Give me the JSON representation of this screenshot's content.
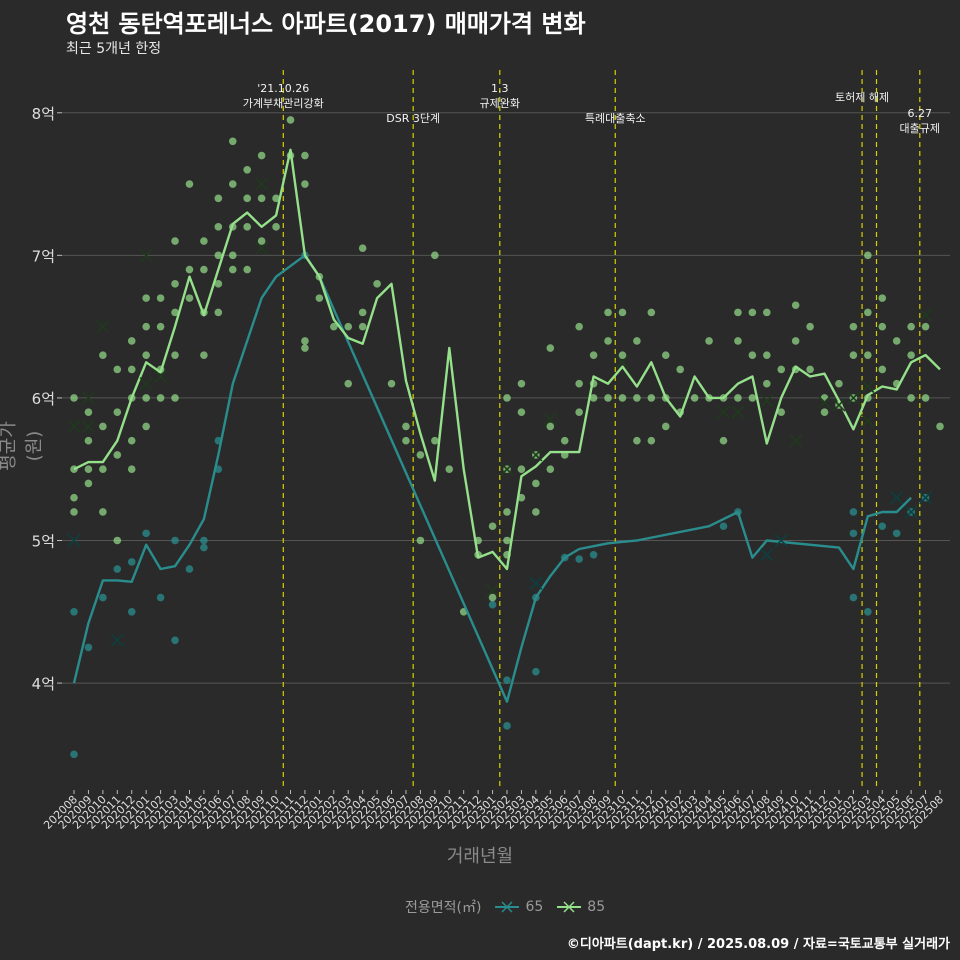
{
  "title": "영천 동탄역포레너스 아파트(2017) 매매가격 변화",
  "subtitle": "최근 5개년 한정",
  "caption": "©디아파트(dapt.kr) / 2025.08.09 / 자료=국토교통부 실거래가",
  "colors": {
    "background": "#2b2a2b",
    "grid": "#555555",
    "s65": "#2a8d8d",
    "s85": "#95e08a",
    "event": "#d8d000"
  },
  "chart_data": {
    "type": "line",
    "title": "영천 동탄역포레너스 아파트(2017) 매매가격 변화",
    "subtitle": "최근 5개년 한정",
    "xlabel": "거래년월",
    "ylabel": "평균가(원)",
    "legend": {
      "title": "전용면적(㎡)",
      "position": "bottom"
    },
    "ylim": [
      3.25,
      8.3
    ],
    "y_ticks": [
      {
        "v": 4,
        "label": "4억"
      },
      {
        "v": 5,
        "label": "5억"
      },
      {
        "v": 6,
        "label": "6억"
      },
      {
        "v": 7,
        "label": "7억"
      },
      {
        "v": 8,
        "label": "8억"
      }
    ],
    "categories": [
      "202008",
      "202009",
      "202010",
      "202011",
      "202012",
      "202101",
      "202102",
      "202103",
      "202104",
      "202105",
      "202106",
      "202107",
      "202108",
      "202109",
      "202110",
      "202111",
      "202112",
      "202201",
      "202202",
      "202203",
      "202204",
      "202205",
      "202206",
      "202207",
      "202208",
      "202209",
      "202210",
      "202211",
      "202212",
      "202301",
      "202302",
      "202303",
      "202304",
      "202305",
      "202306",
      "202307",
      "202308",
      "202309",
      "202310",
      "202311",
      "202312",
      "202401",
      "202402",
      "202403",
      "202404",
      "202405",
      "202406",
      "202407",
      "202408",
      "202409",
      "202410",
      "202411",
      "202412",
      "202501",
      "202502",
      "202503",
      "202504",
      "202505",
      "202506",
      "202507",
      "202508"
    ],
    "series": [
      {
        "name": "65",
        "y": [
          4.0,
          4.42,
          4.72,
          4.72,
          4.71,
          4.97,
          4.8,
          4.82,
          4.97,
          5.15,
          5.6,
          6.1,
          6.4,
          6.7,
          6.85,
          null,
          7.0,
          6.85,
          null,
          null,
          null,
          null,
          null,
          null,
          null,
          null,
          null,
          null,
          null,
          null,
          3.87,
          4.25,
          4.6,
          4.75,
          4.88,
          4.94,
          4.96,
          4.98,
          null,
          5.0,
          null,
          null,
          null,
          null,
          5.1,
          null,
          5.2,
          4.88,
          5.0,
          null,
          null,
          null,
          null,
          4.95,
          4.8,
          5.17,
          5.2,
          5.2,
          5.3,
          null,
          null
        ]
      },
      {
        "name": "85",
        "y": [
          5.5,
          5.55,
          5.55,
          5.7,
          6.0,
          6.25,
          6.18,
          6.5,
          6.85,
          6.58,
          6.9,
          7.22,
          7.3,
          7.2,
          7.28,
          7.74,
          7.0,
          6.85,
          6.55,
          6.42,
          6.38,
          6.7,
          6.8,
          6.12,
          5.75,
          5.42,
          6.35,
          5.5,
          4.88,
          4.92,
          4.8,
          5.45,
          5.52,
          5.62,
          5.62,
          5.62,
          6.15,
          6.1,
          6.22,
          6.08,
          6.25,
          6.0,
          5.87,
          6.15,
          6.0,
          6.0,
          6.1,
          6.15,
          5.68,
          6.0,
          6.22,
          6.15,
          6.17,
          5.98,
          5.78,
          6.02,
          6.08,
          6.06,
          6.25,
          6.3,
          6.2
        ]
      }
    ],
    "points_85": [
      [
        0,
        6.0
      ],
      [
        0,
        5.5
      ],
      [
        0,
        5.3
      ],
      [
        0,
        5.2
      ],
      [
        1,
        5.9
      ],
      [
        1,
        5.7
      ],
      [
        1,
        5.5
      ],
      [
        1,
        5.4
      ],
      [
        2,
        5.8
      ],
      [
        2,
        5.5
      ],
      [
        2,
        6.3
      ],
      [
        2,
        5.2
      ],
      [
        3,
        6.2
      ],
      [
        3,
        5.9
      ],
      [
        3,
        5.6
      ],
      [
        3,
        5.0
      ],
      [
        4,
        6.4
      ],
      [
        4,
        6.2
      ],
      [
        4,
        6.0
      ],
      [
        4,
        5.7
      ],
      [
        4,
        5.5
      ],
      [
        5,
        6.7
      ],
      [
        5,
        6.5
      ],
      [
        5,
        6.3
      ],
      [
        5,
        6.0
      ],
      [
        5,
        5.8
      ],
      [
        6,
        6.7
      ],
      [
        6,
        6.5
      ],
      [
        6,
        6.2
      ],
      [
        6,
        6.0
      ],
      [
        7,
        7.1
      ],
      [
        7,
        6.8
      ],
      [
        7,
        6.6
      ],
      [
        7,
        6.3
      ],
      [
        7,
        6.0
      ],
      [
        8,
        7.5
      ],
      [
        8,
        6.9
      ],
      [
        8,
        6.7
      ],
      [
        9,
        7.1
      ],
      [
        9,
        6.9
      ],
      [
        9,
        6.6
      ],
      [
        9,
        6.3
      ],
      [
        10,
        7.4
      ],
      [
        10,
        7.2
      ],
      [
        10,
        7.0
      ],
      [
        10,
        6.8
      ],
      [
        10,
        6.6
      ],
      [
        11,
        7.8
      ],
      [
        11,
        7.5
      ],
      [
        11,
        7.2
      ],
      [
        11,
        7.0
      ],
      [
        11,
        6.9
      ],
      [
        12,
        7.6
      ],
      [
        12,
        7.4
      ],
      [
        12,
        7.2
      ],
      [
        12,
        6.9
      ],
      [
        13,
        7.7
      ],
      [
        13,
        7.4
      ],
      [
        13,
        7.1
      ],
      [
        14,
        7.4
      ],
      [
        14,
        7.2
      ],
      [
        15,
        7.95
      ],
      [
        15,
        7.7
      ],
      [
        16,
        7.7
      ],
      [
        16,
        7.5
      ],
      [
        16,
        6.4
      ],
      [
        16,
        6.35
      ],
      [
        17,
        6.85
      ],
      [
        17,
        6.7
      ],
      [
        18,
        6.5
      ],
      [
        19,
        6.5
      ],
      [
        19,
        6.1
      ],
      [
        20,
        7.05
      ],
      [
        20,
        6.6
      ],
      [
        20,
        6.5
      ],
      [
        21,
        6.8
      ],
      [
        22,
        6.1
      ],
      [
        23,
        5.8
      ],
      [
        23,
        5.7
      ],
      [
        24,
        5.6
      ],
      [
        24,
        5.0
      ],
      [
        25,
        7.0
      ],
      [
        25,
        5.7
      ],
      [
        26,
        5.5
      ],
      [
        27,
        4.5
      ],
      [
        28,
        5.0
      ],
      [
        28,
        4.9
      ],
      [
        29,
        5.1
      ],
      [
        29,
        4.6
      ],
      [
        30,
        6.0
      ],
      [
        30,
        5.5
      ],
      [
        30,
        5.2
      ],
      [
        30,
        5.0
      ],
      [
        30,
        4.9
      ],
      [
        31,
        6.1
      ],
      [
        31,
        5.9
      ],
      [
        31,
        5.5
      ],
      [
        31,
        5.3
      ],
      [
        32,
        5.6
      ],
      [
        32,
        5.4
      ],
      [
        32,
        5.2
      ],
      [
        33,
        6.35
      ],
      [
        33,
        5.8
      ],
      [
        33,
        5.5
      ],
      [
        34,
        5.7
      ],
      [
        34,
        5.6
      ],
      [
        35,
        6.5
      ],
      [
        35,
        6.1
      ],
      [
        35,
        5.9
      ],
      [
        36,
        6.3
      ],
      [
        36,
        6.1
      ],
      [
        36,
        6.0
      ],
      [
        37,
        6.6
      ],
      [
        37,
        6.4
      ],
      [
        37,
        6.0
      ],
      [
        38,
        6.6
      ],
      [
        38,
        6.3
      ],
      [
        38,
        6.0
      ],
      [
        39,
        6.4
      ],
      [
        39,
        6.0
      ],
      [
        39,
        5.7
      ],
      [
        40,
        6.6
      ],
      [
        40,
        6.0
      ],
      [
        40,
        5.7
      ],
      [
        41,
        6.3
      ],
      [
        41,
        6.0
      ],
      [
        41,
        5.8
      ],
      [
        42,
        6.2
      ],
      [
        42,
        5.9
      ],
      [
        43,
        6.0
      ],
      [
        44,
        6.4
      ],
      [
        44,
        6.0
      ],
      [
        45,
        6.0
      ],
      [
        45,
        5.7
      ],
      [
        46,
        6.6
      ],
      [
        46,
        6.4
      ],
      [
        46,
        6.0
      ],
      [
        47,
        6.6
      ],
      [
        47,
        6.3
      ],
      [
        47,
        6.0
      ],
      [
        48,
        6.6
      ],
      [
        48,
        6.3
      ],
      [
        48,
        6.1
      ],
      [
        49,
        6.2
      ],
      [
        49,
        5.9
      ],
      [
        50,
        6.65
      ],
      [
        50,
        6.4
      ],
      [
        50,
        6.2
      ],
      [
        51,
        6.5
      ],
      [
        51,
        6.2
      ],
      [
        52,
        6.0
      ],
      [
        52,
        5.9
      ],
      [
        53,
        6.1
      ],
      [
        53,
        5.95
      ],
      [
        54,
        6.5
      ],
      [
        54,
        6.3
      ],
      [
        54,
        6.0
      ],
      [
        55,
        7.0
      ],
      [
        55,
        6.6
      ],
      [
        55,
        6.3
      ],
      [
        55,
        6.0
      ],
      [
        56,
        6.7
      ],
      [
        56,
        6.5
      ],
      [
        56,
        6.2
      ],
      [
        57,
        6.4
      ],
      [
        57,
        6.1
      ],
      [
        58,
        6.5
      ],
      [
        58,
        6.3
      ],
      [
        58,
        6.0
      ],
      [
        59,
        6.5
      ],
      [
        59,
        6.0
      ],
      [
        60,
        5.8
      ]
    ],
    "points_65": [
      [
        0,
        4.5
      ],
      [
        0,
        3.5
      ],
      [
        1,
        4.25
      ],
      [
        2,
        4.6
      ],
      [
        3,
        4.8
      ],
      [
        4,
        4.5
      ],
      [
        4,
        4.85
      ],
      [
        5,
        5.05
      ],
      [
        6,
        4.6
      ],
      [
        7,
        4.3
      ],
      [
        7,
        5.0
      ],
      [
        8,
        4.8
      ],
      [
        9,
        4.95
      ],
      [
        9,
        5.0
      ],
      [
        10,
        5.5
      ],
      [
        10,
        5.7
      ],
      [
        16,
        7.0
      ],
      [
        29,
        4.55
      ],
      [
        30,
        3.7
      ],
      [
        30,
        4.02
      ],
      [
        32,
        4.08
      ],
      [
        32,
        4.6
      ],
      [
        34,
        4.88
      ],
      [
        35,
        4.87
      ],
      [
        36,
        4.9
      ],
      [
        45,
        5.1
      ],
      [
        46,
        5.2
      ],
      [
        54,
        4.6
      ],
      [
        54,
        5.05
      ],
      [
        54,
        5.2
      ],
      [
        55,
        4.5
      ],
      [
        56,
        5.1
      ],
      [
        57,
        5.05
      ],
      [
        58,
        5.2
      ],
      [
        59,
        5.3
      ]
    ],
    "x_markers_85": [
      [
        0,
        5.8
      ],
      [
        1,
        6.0
      ],
      [
        1,
        5.8
      ],
      [
        2,
        6.5
      ],
      [
        5,
        7.0
      ],
      [
        5,
        6.1
      ],
      [
        6,
        6.15
      ],
      [
        13,
        7.5
      ],
      [
        13,
        7.05
      ],
      [
        29,
        4.65
      ],
      [
        30,
        5.5
      ],
      [
        32,
        5.6
      ],
      [
        33,
        5.85
      ],
      [
        38,
        6.25
      ],
      [
        45,
        5.9
      ],
      [
        46,
        5.9
      ],
      [
        48,
        5.98
      ],
      [
        50,
        5.7
      ],
      [
        52,
        5.97
      ],
      [
        53,
        5.95
      ],
      [
        54,
        6.0
      ],
      [
        55,
        6.08
      ],
      [
        55,
        5.84
      ],
      [
        59,
        6.58
      ]
    ],
    "x_markers_65": [
      [
        0,
        5.0
      ],
      [
        3,
        4.3
      ],
      [
        32,
        4.7
      ],
      [
        48,
        4.9
      ],
      [
        49,
        5.0
      ],
      [
        57,
        5.3
      ],
      [
        58,
        5.2
      ],
      [
        59,
        5.3
      ]
    ],
    "events": [
      {
        "x": 14.5,
        "lines": [
          "'21.10.26",
          "가계부채관리강화"
        ],
        "row": 0
      },
      {
        "x": 23.5,
        "lines": [
          "DSR 3단계"
        ],
        "row": 1
      },
      {
        "x": 29.5,
        "lines": [
          "1.3",
          "규제완화"
        ],
        "row": 0
      },
      {
        "x": 37.5,
        "lines": [
          "특례대출축소"
        ],
        "row": 1
      },
      {
        "x": 54.6,
        "lines": [
          "토허제 해제"
        ],
        "row": 2
      },
      {
        "x": 55.6,
        "lines": [],
        "row": 2
      },
      {
        "x": 58.6,
        "lines": [
          "6.27",
          "대출규제"
        ],
        "row": 3
      }
    ]
  }
}
